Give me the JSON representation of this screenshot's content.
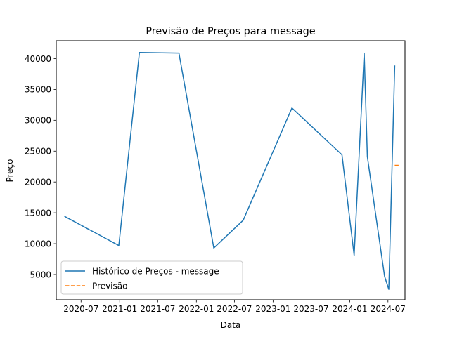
{
  "chart_data": {
    "type": "line",
    "title": "Previsão de Preços para message",
    "xlabel": "Data",
    "ylabel": "Preço",
    "x_axis_type": "date",
    "xlim": [
      "2020-03-05",
      "2024-09-20"
    ],
    "ylim": [
      900,
      42900
    ],
    "x_ticks": [
      {
        "date": "2020-07-01",
        "label": "2020-07"
      },
      {
        "date": "2021-01-01",
        "label": "2021-01"
      },
      {
        "date": "2021-07-01",
        "label": "2021-07"
      },
      {
        "date": "2022-01-01",
        "label": "2022-01"
      },
      {
        "date": "2022-07-01",
        "label": "2022-07"
      },
      {
        "date": "2023-01-01",
        "label": "2023-01"
      },
      {
        "date": "2023-07-01",
        "label": "2023-07"
      },
      {
        "date": "2024-01-01",
        "label": "2024-01"
      },
      {
        "date": "2024-07-01",
        "label": "2024-07"
      }
    ],
    "y_ticks": [
      5000,
      10000,
      15000,
      20000,
      25000,
      30000,
      35000,
      40000
    ],
    "grid": false,
    "legend_position": "lower-left",
    "series": [
      {
        "name": "Histórico de Preços - message",
        "color": "#1f77b4",
        "line_style": "solid",
        "points": [
          {
            "x": "2020-04-15",
            "y": 14400
          },
          {
            "x": "2020-12-28",
            "y": 9700
          },
          {
            "x": "2021-04-05",
            "y": 41000
          },
          {
            "x": "2021-10-10",
            "y": 40900
          },
          {
            "x": "2022-03-25",
            "y": 9300
          },
          {
            "x": "2022-08-12",
            "y": 13800
          },
          {
            "x": "2023-04-01",
            "y": 32000
          },
          {
            "x": "2023-11-25",
            "y": 24400
          },
          {
            "x": "2024-01-22",
            "y": 8100
          },
          {
            "x": "2024-03-10",
            "y": 40900
          },
          {
            "x": "2024-03-25",
            "y": 24100
          },
          {
            "x": "2024-06-15",
            "y": 4700
          },
          {
            "x": "2024-07-05",
            "y": 2600
          },
          {
            "x": "2024-08-02",
            "y": 38800
          }
        ]
      },
      {
        "name": "Previsão",
        "color": "#ff7f0e",
        "line_style": "dashed",
        "points": [
          {
            "x": "2024-08-02",
            "y": 22700
          },
          {
            "x": "2024-08-25",
            "y": 22700
          }
        ]
      }
    ]
  }
}
